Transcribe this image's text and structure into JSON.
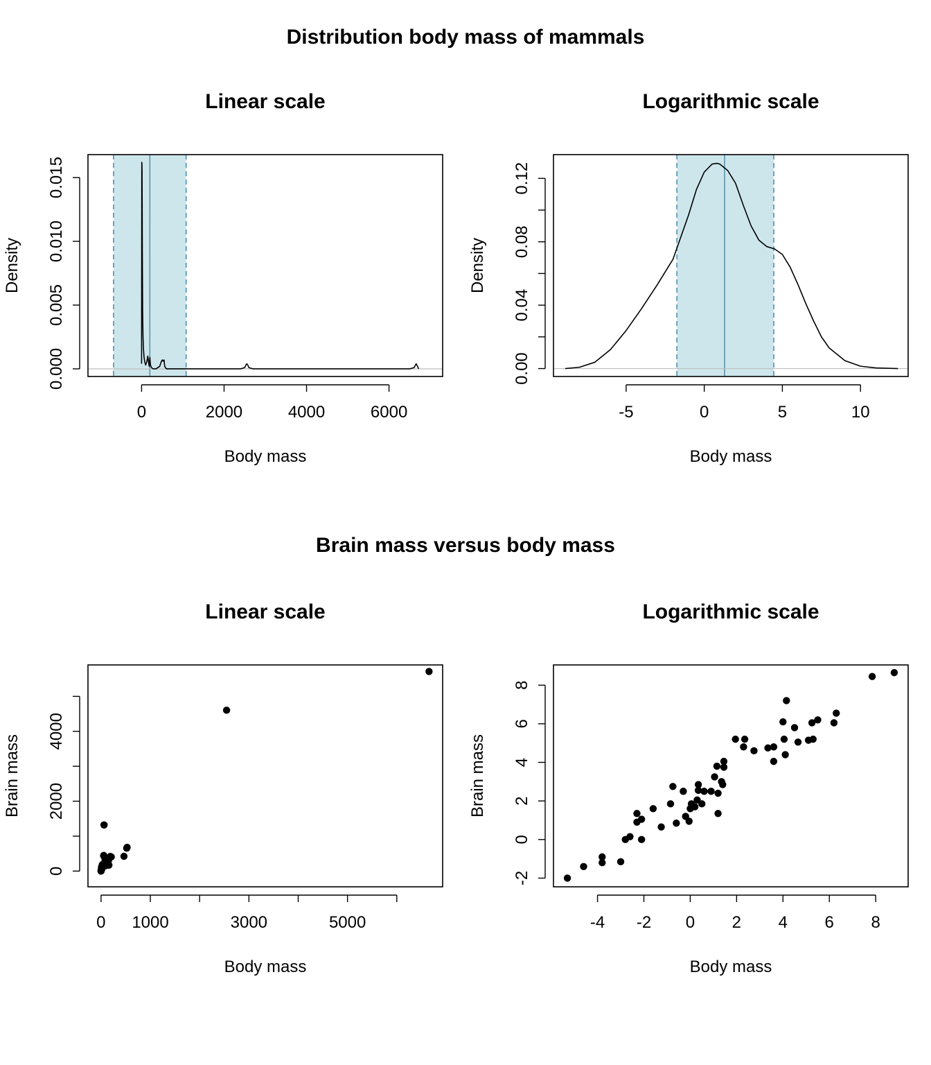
{
  "colors": {
    "band_fill": "#cde6ec",
    "band_edge": "#4a90b0",
    "center_line": "#5b93ad",
    "curve": "#000000",
    "baseline": "#bebebe",
    "points": "#000000"
  },
  "sections": {
    "distribution_title": "Distribution body mass of mammals",
    "scatter_title": "Brain mass versus body mass"
  },
  "chart_data": [
    {
      "id": "density-linear",
      "type": "line",
      "title": "Linear scale",
      "xlabel": "Body mass",
      "ylabel": "Density",
      "xlim": [
        -1300,
        7300
      ],
      "ylim": [
        -0.0006,
        0.0168
      ],
      "xticks": [
        0,
        2000,
        4000,
        6000
      ],
      "xtick_labels": [
        "0",
        "2000",
        "4000",
        "6000"
      ],
      "yticks": [
        0.0,
        0.005,
        0.01,
        0.015
      ],
      "ytick_labels": [
        "0.000",
        "0.005",
        "0.010",
        "0.015"
      ],
      "band": [
        -680,
        1080
      ],
      "center": 200,
      "x": [
        0,
        5,
        8,
        12,
        18,
        25,
        35,
        45,
        60,
        80,
        100,
        130,
        150,
        170,
        185,
        200,
        215,
        240,
        280,
        350,
        440,
        470,
        500,
        520,
        545,
        560,
        600,
        700,
        1000,
        1500,
        2000,
        2400,
        2500,
        2530,
        2550,
        2575,
        2600,
        2700,
        3500,
        4500,
        5500,
        6500,
        6610,
        6640,
        6660,
        6690,
        6720
      ],
      "y": [
        0.0004,
        0.0162,
        0.0161,
        0.0155,
        0.0093,
        0.0045,
        0.0025,
        0.0016,
        0.0009,
        0.0005,
        0.0003,
        0.0006,
        0.001,
        0.0005,
        0.0002,
        0.0009,
        0.0003,
        0.0001,
        0.0,
        0.0,
        0.0002,
        0.0005,
        0.0007,
        0.0006,
        0.0007,
        0.0002,
        0.0,
        0.0,
        0.0,
        0.0,
        0.0,
        0.0,
        0.0001,
        0.0003,
        0.0004,
        0.0003,
        0.0001,
        0.0,
        0.0,
        0.0,
        0.0,
        0.0,
        0.0001,
        0.0003,
        0.0004,
        0.0002,
        0.0
      ]
    },
    {
      "id": "density-log",
      "type": "line",
      "title": "Logarithmic scale",
      "xlabel": "Body mass",
      "ylabel": "Density",
      "xlim": [
        -9.65,
        13.05
      ],
      "ylim": [
        -0.005,
        0.135
      ],
      "xticks": [
        -5,
        0,
        5,
        10
      ],
      "xtick_labels": [
        "-5",
        "0",
        "5",
        "10"
      ],
      "yticks": [
        0.0,
        0.02,
        0.04,
        0.06,
        0.08,
        0.1,
        0.12
      ],
      "ytick_labels": [
        "0.00",
        "",
        "0.04",
        "",
        "0.08",
        "",
        "0.12"
      ],
      "band": [
        -1.75,
        4.45
      ],
      "center": 1.3,
      "x": [
        -8.9,
        -8.0,
        -7.0,
        -6.0,
        -5.0,
        -4.0,
        -3.0,
        -2.0,
        -1.0,
        -0.5,
        0.0,
        0.5,
        0.8,
        1.0,
        1.5,
        2.0,
        2.5,
        3.0,
        3.5,
        4.0,
        4.5,
        5.0,
        5.5,
        6.0,
        6.5,
        7.0,
        7.5,
        8.0,
        9.0,
        10.0,
        11.0,
        12.4
      ],
      "y": [
        0.0,
        0.0008,
        0.004,
        0.012,
        0.024,
        0.038,
        0.053,
        0.069,
        0.097,
        0.113,
        0.124,
        0.129,
        0.1295,
        0.129,
        0.125,
        0.117,
        0.103,
        0.09,
        0.081,
        0.077,
        0.0755,
        0.072,
        0.064,
        0.053,
        0.041,
        0.03,
        0.02,
        0.013,
        0.005,
        0.0015,
        0.0004,
        0.0
      ]
    },
    {
      "id": "scatter-linear",
      "type": "scatter",
      "title": "Linear scale",
      "xlabel": "Body mass",
      "ylabel": "Brain mass",
      "xlim": [
        -265,
        6930
      ],
      "ylim": [
        -450,
        5900
      ],
      "xticks": [
        0,
        1000,
        2000,
        3000,
        4000,
        5000,
        6000
      ],
      "xtick_labels": [
        "0",
        "1000",
        "",
        "3000",
        "",
        "5000",
        ""
      ],
      "yticks": [
        0,
        1000,
        2000,
        3000,
        4000,
        5000
      ],
      "ytick_labels": [
        "0",
        "",
        "2000",
        "",
        "4000",
        ""
      ],
      "points": [
        [
          6654,
          5712
        ],
        [
          2547,
          4603
        ],
        [
          60,
          1320
        ],
        [
          521,
          655
        ],
        [
          529,
          680
        ],
        [
          465,
          423
        ],
        [
          207,
          406
        ],
        [
          187,
          419
        ],
        [
          160,
          169
        ],
        [
          100,
          157
        ],
        [
          85,
          325
        ],
        [
          62,
          1320
        ],
        [
          55,
          450
        ],
        [
          52,
          440
        ],
        [
          36,
          119
        ],
        [
          27,
          115
        ],
        [
          14,
          98
        ],
        [
          10,
          115
        ],
        [
          6,
          50
        ],
        [
          4,
          17
        ],
        [
          3,
          25
        ],
        [
          2,
          12
        ],
        [
          1,
          6
        ],
        [
          0.5,
          3
        ],
        [
          0.1,
          1
        ],
        [
          80,
          350
        ],
        [
          120,
          250
        ],
        [
          150,
          300
        ],
        [
          40,
          200
        ],
        [
          25,
          180
        ],
        [
          17,
          60
        ],
        [
          11,
          100
        ],
        [
          8,
          40
        ],
        [
          5,
          30
        ]
      ]
    },
    {
      "id": "scatter-log",
      "type": "scatter",
      "title": "Logarithmic scale",
      "xlabel": "Body mass",
      "ylabel": "Brain mass",
      "xlim": [
        -5.9,
        9.4
      ],
      "ylim": [
        -2.45,
        9.05
      ],
      "xticks": [
        -4,
        -2,
        0,
        2,
        4,
        6,
        8
      ],
      "xtick_labels": [
        "-4",
        "-2",
        "0",
        "2",
        "4",
        "6",
        "8"
      ],
      "yticks": [
        -2,
        0,
        2,
        4,
        6,
        8
      ],
      "ytick_labels": [
        "-2",
        "0",
        "2",
        "4",
        "6",
        "8"
      ],
      "points": [
        [
          -5.3,
          -2.0
        ],
        [
          -4.6,
          -1.4
        ],
        [
          -3.8,
          -0.9
        ],
        [
          -3.8,
          -1.2
        ],
        [
          -3.0,
          -1.15
        ],
        [
          -2.8,
          0.0
        ],
        [
          -2.6,
          0.15
        ],
        [
          -2.3,
          1.35
        ],
        [
          -2.3,
          0.9
        ],
        [
          -2.1,
          1.05
        ],
        [
          -2.1,
          0.0
        ],
        [
          -1.6,
          1.6
        ],
        [
          -1.25,
          0.65
        ],
        [
          -0.85,
          1.85
        ],
        [
          -0.75,
          2.75
        ],
        [
          -0.6,
          0.85
        ],
        [
          -0.3,
          2.5
        ],
        [
          -0.2,
          1.2
        ],
        [
          -0.05,
          0.95
        ],
        [
          0.0,
          1.6
        ],
        [
          0.05,
          1.85
        ],
        [
          0.1,
          1.7
        ],
        [
          0.2,
          1.7
        ],
        [
          0.3,
          2.05
        ],
        [
          0.35,
          2.55
        ],
        [
          0.35,
          2.85
        ],
        [
          0.5,
          1.85
        ],
        [
          0.6,
          2.5
        ],
        [
          0.9,
          2.5
        ],
        [
          1.05,
          3.25
        ],
        [
          1.15,
          3.8
        ],
        [
          1.2,
          2.4
        ],
        [
          1.2,
          1.35
        ],
        [
          1.35,
          3.0
        ],
        [
          1.4,
          2.85
        ],
        [
          1.45,
          4.05
        ],
        [
          1.45,
          3.75
        ],
        [
          1.95,
          5.2
        ],
        [
          2.3,
          4.8
        ],
        [
          2.35,
          5.2
        ],
        [
          2.75,
          4.6
        ],
        [
          3.35,
          4.75
        ],
        [
          3.6,
          4.8
        ],
        [
          3.6,
          4.05
        ],
        [
          4.0,
          6.1
        ],
        [
          4.05,
          5.2
        ],
        [
          4.1,
          4.4
        ],
        [
          4.15,
          7.2
        ],
        [
          4.5,
          5.8
        ],
        [
          4.65,
          5.05
        ],
        [
          5.1,
          5.15
        ],
        [
          5.25,
          6.05
        ],
        [
          5.3,
          5.2
        ],
        [
          5.5,
          6.2
        ],
        [
          6.2,
          6.05
        ],
        [
          6.3,
          6.55
        ],
        [
          7.85,
          8.45
        ],
        [
          8.8,
          8.65
        ]
      ]
    }
  ]
}
